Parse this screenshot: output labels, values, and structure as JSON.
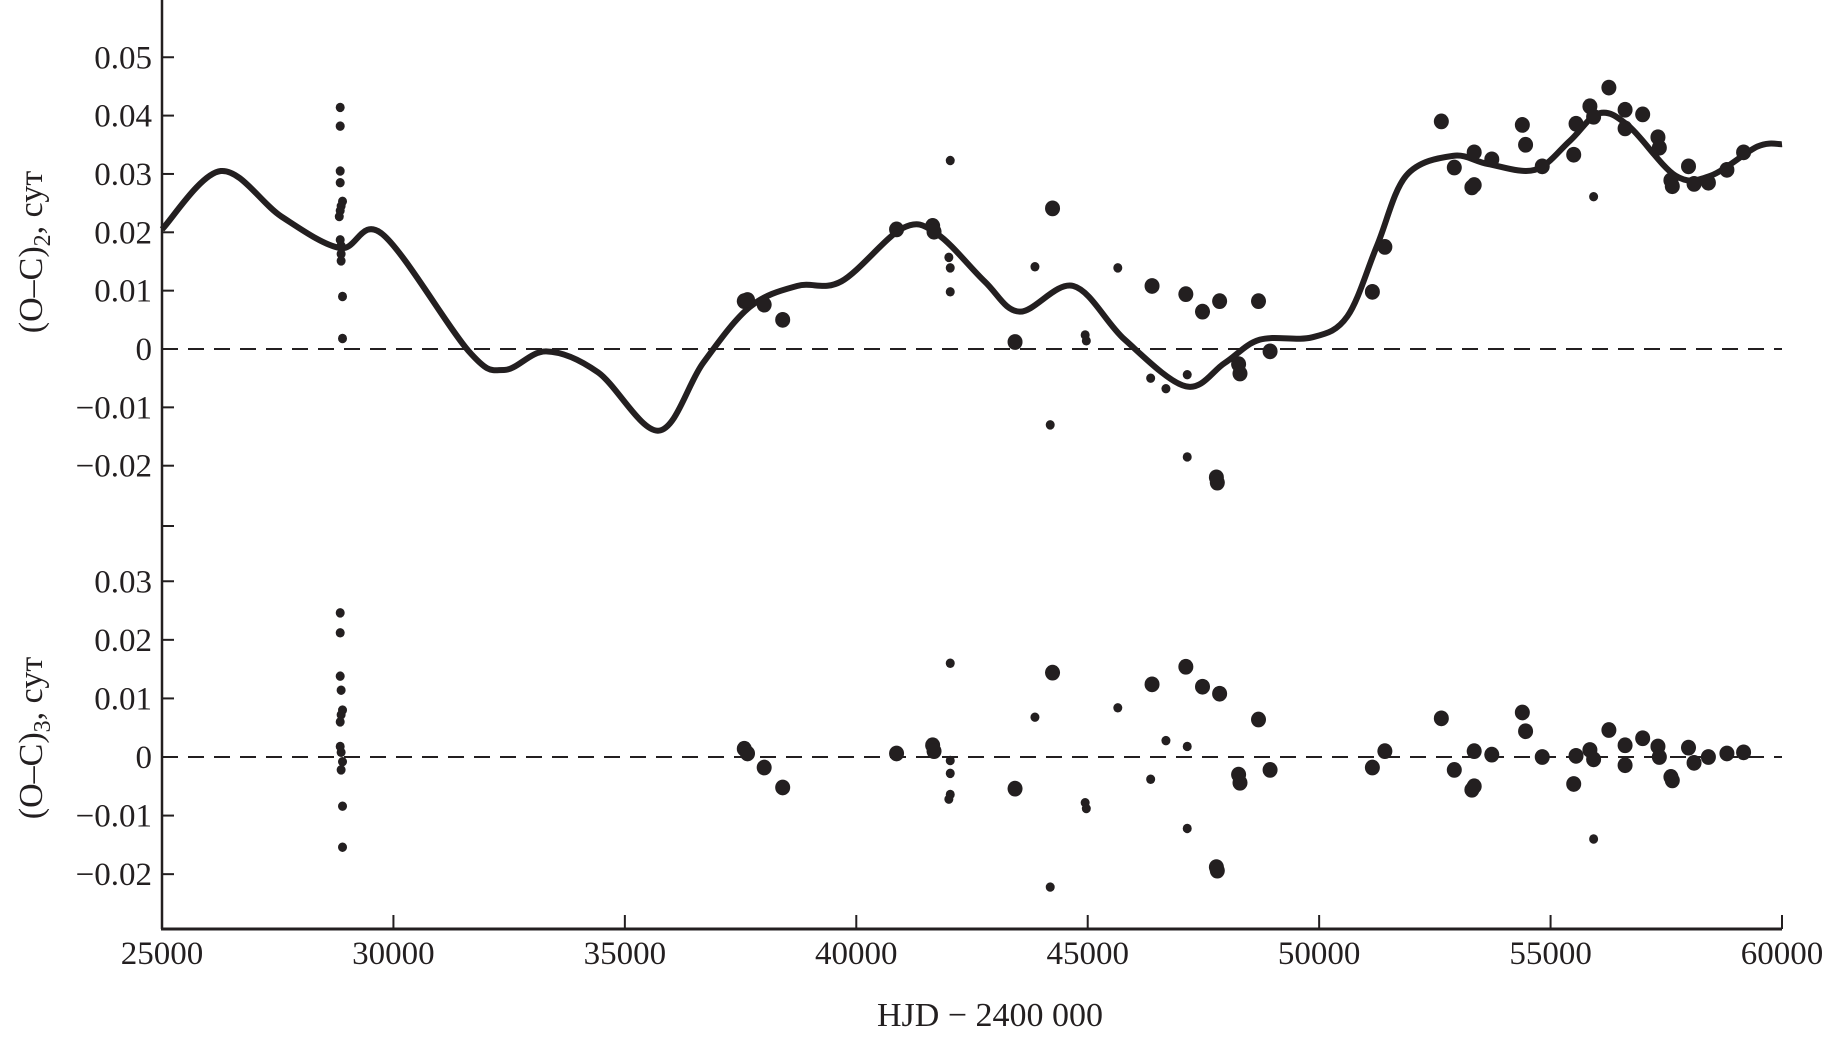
{
  "chart_data": [
    {
      "type": "scatter",
      "panel": "upper",
      "ylabel": {
        "main": "(O–C)",
        "sub": "2",
        "suffix": ", сут"
      },
      "xlabel": "HJD − 2400 000",
      "xlim": [
        25000,
        60000
      ],
      "ylim": [
        -0.03,
        0.06
      ],
      "yticks": [
        "0.05",
        "0.04",
        "0.03",
        "0.02",
        "0.01",
        "0",
        "−0.01",
        "−0.02"
      ],
      "ytick_values": [
        0.05,
        0.04,
        0.03,
        0.02,
        0.01,
        0,
        -0.01,
        -0.02
      ],
      "reference_line": 0,
      "fit_curve": [
        [
          25000,
          0.0205
        ],
        [
          26270,
          0.0305
        ],
        [
          27580,
          0.0227
        ],
        [
          28850,
          0.0173
        ],
        [
          29760,
          0.0197
        ],
        [
          31630,
          -0.0004
        ],
        [
          32390,
          -0.0036
        ],
        [
          33300,
          -0.0004
        ],
        [
          34420,
          -0.004
        ],
        [
          35730,
          -0.014
        ],
        [
          36690,
          -0.0024
        ],
        [
          37700,
          0.0072
        ],
        [
          38720,
          0.0108
        ],
        [
          39680,
          0.0116
        ],
        [
          41000,
          0.0207
        ],
        [
          41750,
          0.0197
        ],
        [
          42770,
          0.0116
        ],
        [
          43530,
          0.0064
        ],
        [
          44690,
          0.0108
        ],
        [
          45800,
          0.0016
        ],
        [
          47120,
          -0.0064
        ],
        [
          47960,
          -0.0024
        ],
        [
          48720,
          0.0016
        ],
        [
          49850,
          0.002
        ],
        [
          50610,
          0.0056
        ],
        [
          51250,
          0.0177
        ],
        [
          51880,
          0.0297
        ],
        [
          52890,
          0.0331
        ],
        [
          53650,
          0.0317
        ],
        [
          54660,
          0.0307
        ],
        [
          55420,
          0.0357
        ],
        [
          56050,
          0.0404
        ],
        [
          56690,
          0.0382
        ],
        [
          57700,
          0.0297
        ],
        [
          58460,
          0.0297
        ],
        [
          59470,
          0.0347
        ],
        [
          60000,
          0.0351
        ]
      ],
      "points": [
        [
          28850,
          0.0414,
          "small"
        ],
        [
          28850,
          0.0382,
          "small"
        ],
        [
          28850,
          0.0305,
          "small"
        ],
        [
          28850,
          0.0285,
          "small"
        ],
        [
          28900,
          0.0253,
          "small"
        ],
        [
          28870,
          0.0245,
          "small"
        ],
        [
          28850,
          0.0237,
          "small"
        ],
        [
          28830,
          0.0227,
          "small"
        ],
        [
          28850,
          0.0187,
          "small"
        ],
        [
          28870,
          0.0177,
          "small"
        ],
        [
          28870,
          0.0163,
          "small"
        ],
        [
          28870,
          0.0151,
          "small"
        ],
        [
          28900,
          0.009,
          "small"
        ],
        [
          28900,
          0.0018,
          "small"
        ],
        [
          37580,
          0.0082,
          "large"
        ],
        [
          37650,
          0.0084,
          "large"
        ],
        [
          38010,
          0.0076,
          "large"
        ],
        [
          38410,
          0.005,
          "large"
        ],
        [
          40870,
          0.0205,
          "large"
        ],
        [
          41650,
          0.0211,
          "large"
        ],
        [
          41680,
          0.0201,
          "large"
        ],
        [
          42030,
          0.0323,
          "small"
        ],
        [
          42000,
          0.0157,
          "small"
        ],
        [
          42030,
          0.0139,
          "small"
        ],
        [
          42030,
          0.0098,
          "small"
        ],
        [
          43430,
          0.0012,
          "large"
        ],
        [
          43860,
          0.0141,
          "small"
        ],
        [
          44190,
          -0.013,
          "small"
        ],
        [
          44240,
          0.0241,
          "large"
        ],
        [
          44945,
          0.0024,
          "small"
        ],
        [
          44970,
          0.0014,
          "small"
        ],
        [
          45650,
          0.0139,
          "small"
        ],
        [
          46390,
          0.0108,
          "large"
        ],
        [
          46360,
          -0.005,
          "small"
        ],
        [
          46690,
          -0.0068,
          "small"
        ],
        [
          47120,
          0.0094,
          "large"
        ],
        [
          47150,
          -0.0044,
          "small"
        ],
        [
          47150,
          -0.0185,
          "small"
        ],
        [
          47480,
          0.0064,
          "large"
        ],
        [
          47780,
          -0.022,
          "large"
        ],
        [
          47800,
          -0.0229,
          "large"
        ],
        [
          47850,
          0.0082,
          "large"
        ],
        [
          48260,
          -0.0026,
          "large"
        ],
        [
          48290,
          -0.0042,
          "large"
        ],
        [
          48690,
          0.0082,
          "large"
        ],
        [
          48940,
          -0.0004,
          "large"
        ],
        [
          51150,
          0.0098,
          "large"
        ],
        [
          51420,
          0.0175,
          "large"
        ],
        [
          52640,
          0.039,
          "large"
        ],
        [
          52920,
          0.0311,
          "large"
        ],
        [
          53300,
          0.0277,
          "large"
        ],
        [
          53350,
          0.0337,
          "large"
        ],
        [
          53350,
          0.0281,
          "large"
        ],
        [
          53730,
          0.0325,
          "large"
        ],
        [
          54390,
          0.0384,
          "large"
        ],
        [
          54460,
          0.035,
          "large"
        ],
        [
          54820,
          0.0313,
          "large"
        ],
        [
          55500,
          0.0333,
          "large"
        ],
        [
          55550,
          0.0386,
          "large"
        ],
        [
          55850,
          0.0416,
          "large"
        ],
        [
          55930,
          0.0398,
          "large"
        ],
        [
          55930,
          0.0261,
          "small"
        ],
        [
          56260,
          0.0448,
          "large"
        ],
        [
          56610,
          0.041,
          "large"
        ],
        [
          56610,
          0.0378,
          "large"
        ],
        [
          56990,
          0.0402,
          "large"
        ],
        [
          57320,
          0.0363,
          "large"
        ],
        [
          57350,
          0.0345,
          "large"
        ],
        [
          57600,
          0.0289,
          "large"
        ],
        [
          57630,
          0.0279,
          "large"
        ],
        [
          57980,
          0.0313,
          "large"
        ],
        [
          58100,
          0.0283,
          "large"
        ],
        [
          58410,
          0.0285,
          "large"
        ],
        [
          58810,
          0.0307,
          "large"
        ],
        [
          59170,
          0.0337,
          "large"
        ]
      ]
    },
    {
      "type": "scatter",
      "panel": "lower",
      "ylabel": {
        "main": "(O–C)",
        "sub": "3",
        "suffix": ", сут"
      },
      "xlabel": "HJD − 2400 000",
      "xlim": [
        25000,
        60000
      ],
      "ylim": [
        -0.03,
        0.04
      ],
      "yticks": [
        "0.03",
        "0.02",
        "0.01",
        "0",
        "−0.01",
        "−0.02"
      ],
      "ytick_values": [
        0.03,
        0.02,
        0.01,
        0,
        -0.01,
        -0.02
      ],
      "xticks": [
        "25000",
        "30000",
        "35000",
        "40000",
        "45000",
        "50000",
        "55000",
        "60000"
      ],
      "xtick_values": [
        25000,
        30000,
        35000,
        40000,
        45000,
        50000,
        55000,
        60000
      ],
      "reference_line": 0,
      "points": [
        [
          28850,
          0.0246,
          "small"
        ],
        [
          28850,
          0.0212,
          "small"
        ],
        [
          28850,
          0.0138,
          "small"
        ],
        [
          28870,
          0.0114,
          "small"
        ],
        [
          28900,
          0.008,
          "small"
        ],
        [
          28870,
          0.0072,
          "small"
        ],
        [
          28850,
          0.006,
          "small"
        ],
        [
          28850,
          0.0018,
          "small"
        ],
        [
          28870,
          0.0008,
          "small"
        ],
        [
          28900,
          -0.0008,
          "small"
        ],
        [
          28870,
          -0.0022,
          "small"
        ],
        [
          28900,
          -0.0084,
          "small"
        ],
        [
          28900,
          -0.0154,
          "small"
        ],
        [
          37580,
          0.0014,
          "large"
        ],
        [
          37650,
          0.0006,
          "large"
        ],
        [
          38010,
          -0.0018,
          "large"
        ],
        [
          38410,
          -0.0052,
          "large"
        ],
        [
          40870,
          0.0006,
          "large"
        ],
        [
          41650,
          0.002,
          "large"
        ],
        [
          41680,
          0.001,
          "large"
        ],
        [
          42030,
          0.016,
          "small"
        ],
        [
          42030,
          -0.0006,
          "small"
        ],
        [
          42030,
          -0.0028,
          "small"
        ],
        [
          42030,
          -0.0064,
          "small"
        ],
        [
          42000,
          -0.0072,
          "small"
        ],
        [
          43430,
          -0.0054,
          "large"
        ],
        [
          43860,
          0.0068,
          "small"
        ],
        [
          44190,
          -0.0222,
          "small"
        ],
        [
          44240,
          0.0144,
          "large"
        ],
        [
          44945,
          -0.0078,
          "small"
        ],
        [
          44970,
          -0.0088,
          "small"
        ],
        [
          45650,
          0.0084,
          "small"
        ],
        [
          46390,
          0.0124,
          "large"
        ],
        [
          46360,
          -0.0038,
          "small"
        ],
        [
          46690,
          0.0028,
          "small"
        ],
        [
          47120,
          0.0154,
          "large"
        ],
        [
          47150,
          0.0018,
          "small"
        ],
        [
          47150,
          -0.0122,
          "small"
        ],
        [
          47480,
          0.012,
          "large"
        ],
        [
          47780,
          -0.0188,
          "large"
        ],
        [
          47800,
          -0.0194,
          "large"
        ],
        [
          47850,
          0.0108,
          "large"
        ],
        [
          48260,
          -0.003,
          "large"
        ],
        [
          48290,
          -0.0044,
          "large"
        ],
        [
          48690,
          0.0064,
          "large"
        ],
        [
          48940,
          -0.0022,
          "large"
        ],
        [
          51150,
          -0.0018,
          "large"
        ],
        [
          51420,
          0.001,
          "large"
        ],
        [
          52640,
          0.0066,
          "large"
        ],
        [
          52920,
          -0.0022,
          "large"
        ],
        [
          53300,
          -0.0056,
          "large"
        ],
        [
          53350,
          0.001,
          "large"
        ],
        [
          53350,
          -0.005,
          "large"
        ],
        [
          53730,
          0.0004,
          "large"
        ],
        [
          54390,
          0.0076,
          "large"
        ],
        [
          54460,
          0.0044,
          "large"
        ],
        [
          54820,
          0,
          "large"
        ],
        [
          55500,
          -0.0046,
          "large"
        ],
        [
          55550,
          0.0002,
          "large"
        ],
        [
          55850,
          0.0012,
          "large"
        ],
        [
          55930,
          -0.0004,
          "large"
        ],
        [
          55930,
          -0.014,
          "small"
        ],
        [
          56260,
          0.0046,
          "large"
        ],
        [
          56610,
          0.002,
          "large"
        ],
        [
          56610,
          -0.0014,
          "large"
        ],
        [
          56990,
          0.0032,
          "large"
        ],
        [
          57320,
          0.0018,
          "large"
        ],
        [
          57350,
          0,
          "large"
        ],
        [
          57600,
          -0.0034,
          "large"
        ],
        [
          57630,
          -0.004,
          "large"
        ],
        [
          57980,
          0.0016,
          "large"
        ],
        [
          58100,
          -0.001,
          "large"
        ],
        [
          58410,
          0,
          "large"
        ],
        [
          58810,
          0.0006,
          "large"
        ],
        [
          59170,
          0.0008,
          "large"
        ]
      ]
    }
  ],
  "colors": {
    "ink": "#231f20",
    "background": "#ffffff"
  }
}
